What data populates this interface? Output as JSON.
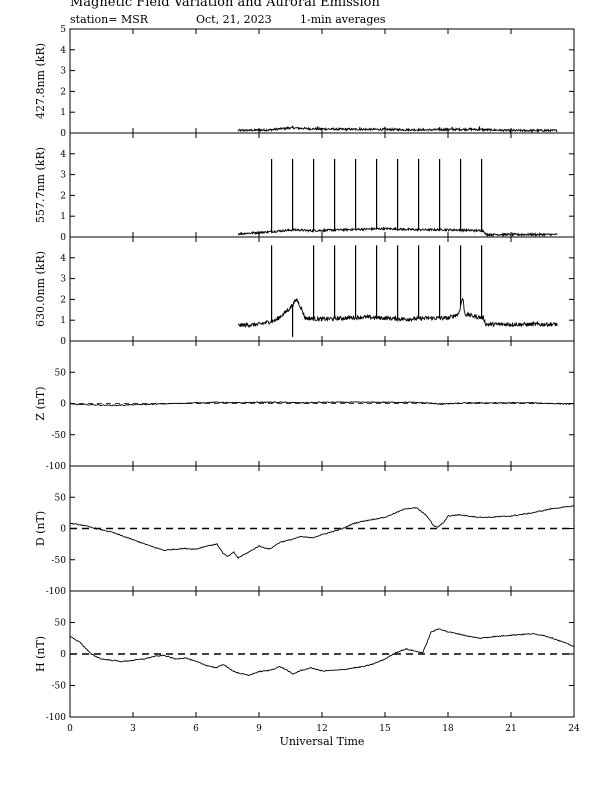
{
  "header": {
    "title": "Magnetic Field Variation and Auroral Emission",
    "station": "station= MSR",
    "date": "Oct, 21, 2023",
    "averaging": "1-min averages"
  },
  "chart_data": {
    "type": "line",
    "x_range": [
      0,
      24
    ],
    "x_ticks": [
      0,
      3,
      6,
      9,
      12,
      15,
      18,
      21,
      24
    ],
    "x_label": "Universal Time",
    "panels": [
      {
        "key": "p4278",
        "ylabel": "427.8nm (kR)",
        "ylim": [
          0,
          5
        ],
        "y_ticks": [
          0,
          1,
          2,
          3,
          4,
          5
        ],
        "zero_line": "none",
        "series": {
          "x_start": 8.0,
          "x_end": 23.2,
          "baseline": [
            [
              8.0,
              0.12
            ],
            [
              9.5,
              0.15
            ],
            [
              10.5,
              0.25
            ],
            [
              11.5,
              0.2
            ],
            [
              13,
              0.18
            ],
            [
              15,
              0.17
            ],
            [
              17,
              0.15
            ],
            [
              19,
              0.18
            ],
            [
              20,
              0.15
            ],
            [
              21,
              0.12
            ],
            [
              23.2,
              0.12
            ]
          ],
          "noise": 0.05,
          "spikes": [
            [
              10.6,
              0.35
            ],
            [
              11.8,
              0.32
            ],
            [
              13.8,
              0.28
            ],
            [
              15.0,
              0.3
            ],
            [
              17.6,
              0.28
            ],
            [
              18.2,
              0.3
            ],
            [
              19.5,
              0.32
            ]
          ]
        }
      },
      {
        "key": "p5577",
        "ylabel": "557.7nm (kR)",
        "ylim": [
          0,
          5
        ],
        "y_ticks": [
          0,
          1,
          2,
          3,
          4
        ],
        "zero_line": "none",
        "series": {
          "x_start": 8.0,
          "x_end": 23.2,
          "baseline": [
            [
              8.0,
              0.15
            ],
            [
              9.5,
              0.25
            ],
            [
              10.7,
              0.35
            ],
            [
              11.5,
              0.3
            ],
            [
              13,
              0.35
            ],
            [
              15,
              0.4
            ],
            [
              16.5,
              0.35
            ],
            [
              18,
              0.35
            ],
            [
              19.7,
              0.3
            ],
            [
              19.8,
              0.12
            ],
            [
              23.2,
              0.12
            ]
          ],
          "noise": 0.05,
          "spikes": [
            [
              9.6,
              3.75
            ],
            [
              10.6,
              3.75
            ],
            [
              11.6,
              3.75
            ],
            [
              12.6,
              3.75
            ],
            [
              13.6,
              3.75
            ],
            [
              14.6,
              3.75
            ],
            [
              15.6,
              3.75
            ],
            [
              16.6,
              3.75
            ],
            [
              17.6,
              3.75
            ],
            [
              18.6,
              3.75
            ],
            [
              19.6,
              3.75
            ]
          ]
        }
      },
      {
        "key": "p6300",
        "ylabel": "630.0nm (kR)",
        "ylim": [
          0,
          5
        ],
        "y_ticks": [
          0,
          1,
          2,
          3,
          4
        ],
        "zero_line": "none",
        "series": {
          "x_start": 8.0,
          "x_end": 23.2,
          "baseline": [
            [
              8.0,
              0.75
            ],
            [
              9.0,
              0.8
            ],
            [
              9.8,
              1.0
            ],
            [
              10.4,
              1.5
            ],
            [
              10.8,
              2.0
            ],
            [
              11.0,
              1.6
            ],
            [
              11.2,
              1.1
            ],
            [
              12,
              1.05
            ],
            [
              13,
              1.1
            ],
            [
              14,
              1.15
            ],
            [
              15,
              1.1
            ],
            [
              16,
              1.05
            ],
            [
              17,
              1.1
            ],
            [
              18,
              1.1
            ],
            [
              18.5,
              1.3
            ],
            [
              18.7,
              2.1
            ],
            [
              18.8,
              1.3
            ],
            [
              19.2,
              1.2
            ],
            [
              19.7,
              1.1
            ],
            [
              19.8,
              0.8
            ],
            [
              23.2,
              0.8
            ]
          ],
          "noise": 0.1,
          "spikes": [
            [
              9.6,
              4.6
            ],
            [
              10.6,
              0.2
            ],
            [
              11.6,
              4.6
            ],
            [
              12.6,
              4.6
            ],
            [
              13.6,
              4.6
            ],
            [
              14.6,
              4.6
            ],
            [
              15.6,
              4.6
            ],
            [
              16.6,
              4.6
            ],
            [
              17.6,
              4.6
            ],
            [
              18.6,
              4.6
            ],
            [
              19.6,
              4.6
            ]
          ]
        }
      },
      {
        "key": "pZ",
        "ylabel": "Z (nT)",
        "ylim": [
          -100,
          100
        ],
        "y_ticks": [
          -100,
          -50,
          0,
          50
        ],
        "zero_line": "dashed-thin",
        "series": {
          "points": [
            [
              0,
              -1
            ],
            [
              1,
              -2
            ],
            [
              2,
              -3
            ],
            [
              3,
              -2
            ],
            [
              4,
              -1
            ],
            [
              5,
              0
            ],
            [
              6,
              1
            ],
            [
              7,
              2
            ],
            [
              8,
              1
            ],
            [
              9,
              2
            ],
            [
              10,
              2
            ],
            [
              11,
              1
            ],
            [
              12,
              2
            ],
            [
              13,
              2
            ],
            [
              14,
              2
            ],
            [
              15,
              2
            ],
            [
              16,
              2
            ],
            [
              17,
              1
            ],
            [
              17.7,
              -1
            ],
            [
              18.3,
              0
            ],
            [
              19,
              1
            ],
            [
              20,
              1
            ],
            [
              21,
              1
            ],
            [
              22,
              1
            ],
            [
              23,
              0
            ],
            [
              24,
              -1
            ]
          ]
        }
      },
      {
        "key": "pD",
        "ylabel": "D (nT)",
        "ylim": [
          -100,
          100
        ],
        "y_ticks": [
          -100,
          -50,
          0,
          50
        ],
        "zero_line": "dashed-thick",
        "series": {
          "points": [
            [
              0,
              8
            ],
            [
              0.5,
              6
            ],
            [
              1,
              2
            ],
            [
              1.5,
              -2
            ],
            [
              2,
              -6
            ],
            [
              2.5,
              -12
            ],
            [
              3,
              -18
            ],
            [
              3.5,
              -24
            ],
            [
              4,
              -30
            ],
            [
              4.5,
              -35
            ],
            [
              5,
              -33
            ],
            [
              5.5,
              -32
            ],
            [
              6,
              -33
            ],
            [
              6.5,
              -28
            ],
            [
              7,
              -25
            ],
            [
              7.3,
              -40
            ],
            [
              7.5,
              -45
            ],
            [
              7.8,
              -38
            ],
            [
              8.0,
              -47
            ],
            [
              8.5,
              -38
            ],
            [
              9,
              -28
            ],
            [
              9.5,
              -33
            ],
            [
              10,
              -22
            ],
            [
              10.5,
              -18
            ],
            [
              11,
              -13
            ],
            [
              11.5,
              -15
            ],
            [
              12,
              -10
            ],
            [
              12.5,
              -5
            ],
            [
              13,
              0
            ],
            [
              13.5,
              8
            ],
            [
              14,
              12
            ],
            [
              14.5,
              15
            ],
            [
              15,
              18
            ],
            [
              15.5,
              25
            ],
            [
              16,
              32
            ],
            [
              16.5,
              33
            ],
            [
              17,
              20
            ],
            [
              17.3,
              5
            ],
            [
              17.5,
              2
            ],
            [
              17.8,
              10
            ],
            [
              18,
              20
            ],
            [
              18.5,
              22
            ],
            [
              19,
              20
            ],
            [
              19.5,
              18
            ],
            [
              20,
              18
            ],
            [
              21,
              20
            ],
            [
              22,
              25
            ],
            [
              23,
              32
            ],
            [
              24,
              36
            ]
          ]
        }
      },
      {
        "key": "pH",
        "ylabel": "H (nT)",
        "ylim": [
          -100,
          100
        ],
        "y_ticks": [
          -100,
          -50,
          0,
          50
        ],
        "zero_line": "dashed-thick",
        "series": {
          "points": [
            [
              0,
              28
            ],
            [
              0.5,
              18
            ],
            [
              1,
              0
            ],
            [
              1.5,
              -8
            ],
            [
              2,
              -10
            ],
            [
              2.5,
              -12
            ],
            [
              3,
              -10
            ],
            [
              3.5,
              -8
            ],
            [
              4,
              -4
            ],
            [
              4.5,
              -2
            ],
            [
              5,
              -8
            ],
            [
              5.5,
              -6
            ],
            [
              6,
              -12
            ],
            [
              6.5,
              -18
            ],
            [
              7,
              -22
            ],
            [
              7.3,
              -16
            ],
            [
              7.6,
              -24
            ],
            [
              8,
              -30
            ],
            [
              8.5,
              -34
            ],
            [
              9,
              -28
            ],
            [
              9.5,
              -26
            ],
            [
              10,
              -20
            ],
            [
              10.3,
              -25
            ],
            [
              10.6,
              -32
            ],
            [
              11,
              -26
            ],
            [
              11.5,
              -22
            ],
            [
              12,
              -27
            ],
            [
              12.5,
              -26
            ],
            [
              13,
              -25
            ],
            [
              13.5,
              -22
            ],
            [
              14,
              -20
            ],
            [
              14.5,
              -15
            ],
            [
              15,
              -8
            ],
            [
              15.5,
              2
            ],
            [
              16,
              8
            ],
            [
              16.5,
              4
            ],
            [
              16.8,
              2
            ],
            [
              17.2,
              35
            ],
            [
              17.6,
              40
            ],
            [
              18,
              35
            ],
            [
              18.5,
              32
            ],
            [
              19,
              28
            ],
            [
              19.5,
              25
            ],
            [
              20,
              27
            ],
            [
              21,
              30
            ],
            [
              22,
              32
            ],
            [
              22.5,
              30
            ],
            [
              23,
              25
            ],
            [
              24,
              12
            ]
          ]
        }
      }
    ]
  }
}
